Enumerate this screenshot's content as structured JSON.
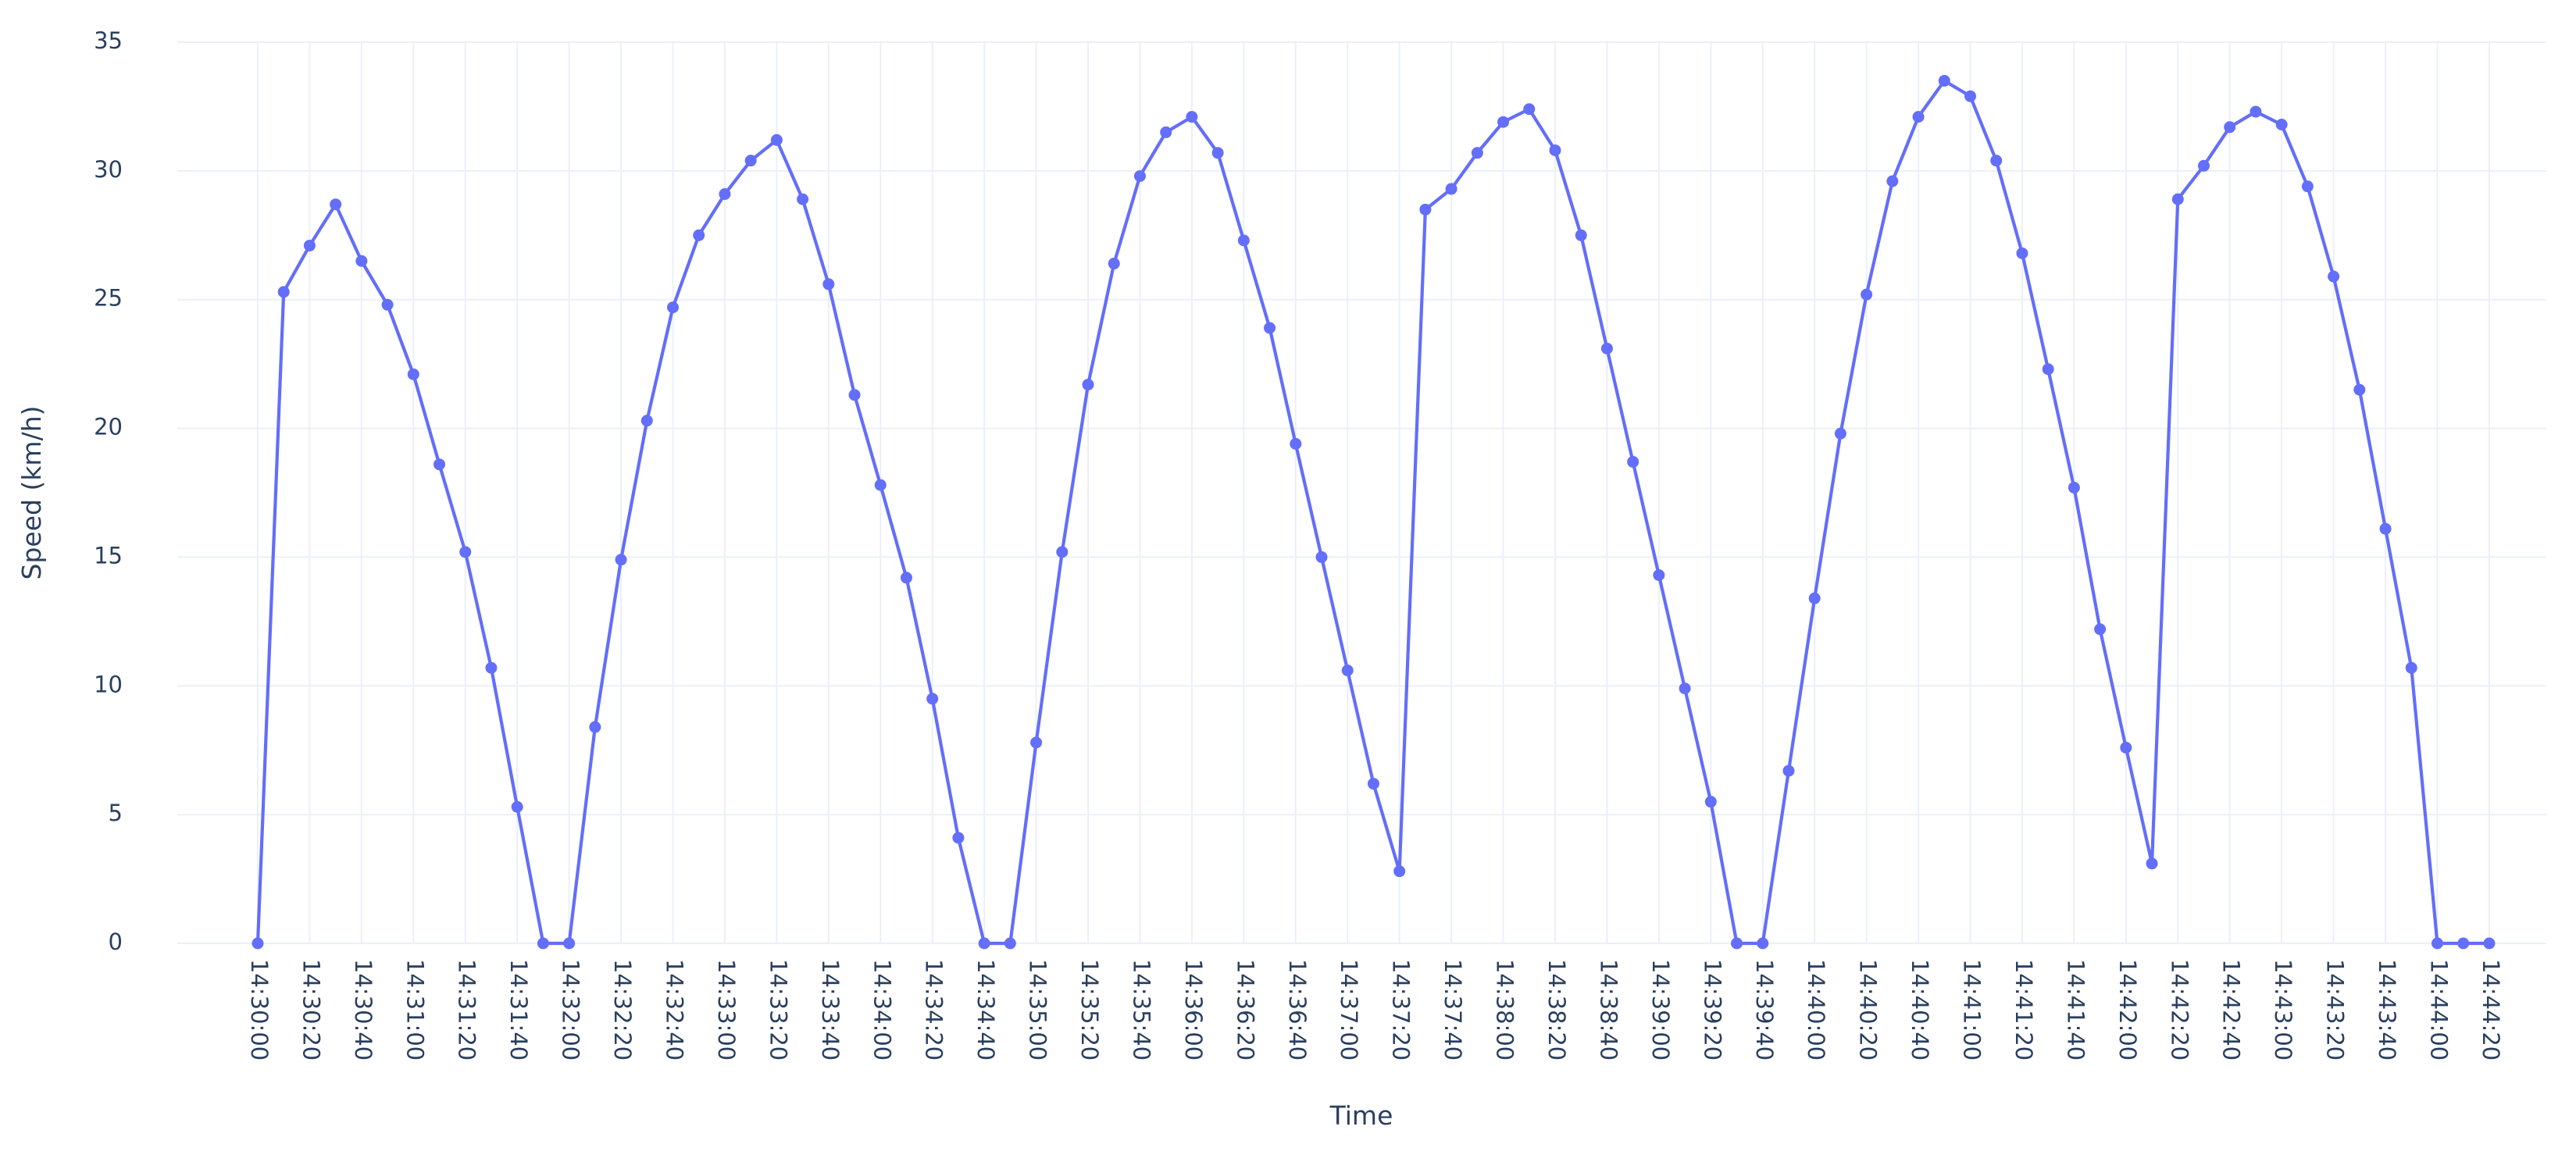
{
  "chart_data": {
    "type": "line",
    "x_label": "Time",
    "y_label": "Speed (km/h)",
    "x": [
      "14:30:00",
      "14:30:10",
      "14:30:20",
      "14:30:30",
      "14:30:40",
      "14:30:50",
      "14:31:00",
      "14:31:10",
      "14:31:20",
      "14:31:30",
      "14:31:40",
      "14:31:50",
      "14:32:00",
      "14:32:10",
      "14:32:20",
      "14:32:30",
      "14:32:40",
      "14:32:50",
      "14:33:00",
      "14:33:10",
      "14:33:20",
      "14:33:30",
      "14:33:40",
      "14:33:50",
      "14:34:00",
      "14:34:10",
      "14:34:20",
      "14:34:30",
      "14:34:40",
      "14:34:50",
      "14:35:00",
      "14:35:10",
      "14:35:20",
      "14:35:30",
      "14:35:40",
      "14:35:50",
      "14:36:00",
      "14:36:10",
      "14:36:20",
      "14:36:30",
      "14:36:40",
      "14:36:50",
      "14:37:00",
      "14:37:10",
      "14:37:20",
      "14:37:30",
      "14:37:40",
      "14:37:50",
      "14:38:00",
      "14:38:10",
      "14:38:20",
      "14:38:30",
      "14:38:40",
      "14:38:50",
      "14:39:00",
      "14:39:10",
      "14:39:20",
      "14:39:30",
      "14:39:40",
      "14:39:50",
      "14:40:00",
      "14:40:10",
      "14:40:20",
      "14:40:30",
      "14:40:40",
      "14:40:50",
      "14:41:00",
      "14:41:10",
      "14:41:20",
      "14:41:30",
      "14:41:40",
      "14:41:50",
      "14:42:00",
      "14:42:10",
      "14:42:20",
      "14:42:30",
      "14:42:40",
      "14:42:50",
      "14:43:00",
      "14:43:10",
      "14:43:20",
      "14:43:30",
      "14:43:40",
      "14:43:50",
      "14:44:00",
      "14:44:10",
      "14:44:20"
    ],
    "series": [
      {
        "color": "#636efa",
        "values": [
          0,
          25.3,
          27.1,
          28.7,
          26.5,
          24.8,
          22.1,
          18.6,
          15.2,
          10.7,
          5.3,
          0,
          0,
          8.4,
          14.9,
          20.3,
          24.7,
          27.5,
          29.1,
          30.4,
          31.2,
          28.9,
          25.6,
          21.3,
          17.8,
          14.2,
          9.5,
          4.1,
          0,
          0,
          7.8,
          15.2,
          21.7,
          26.4,
          29.8,
          31.5,
          32.1,
          30.7,
          27.3,
          23.9,
          19.4,
          15.0,
          10.6,
          6.2,
          2.8,
          28.5,
          29.3,
          30.7,
          31.9,
          32.4,
          30.8,
          27.5,
          23.1,
          18.7,
          14.3,
          9.9,
          5.5,
          0,
          0,
          6.7,
          13.4,
          19.8,
          25.2,
          29.6,
          32.1,
          33.5,
          32.9,
          30.4,
          26.8,
          22.3,
          17.7,
          12.2,
          7.6,
          3.1,
          28.9,
          30.2,
          31.7,
          32.3,
          31.8,
          29.4,
          25.9,
          21.5,
          16.1,
          10.7,
          0,
          0,
          0
        ]
      }
    ],
    "xlim": [
      "14:29:29",
      "14:44:42"
    ],
    "xticks": [
      "14:30:00",
      "14:30:20",
      "14:30:40",
      "14:31:00",
      "14:31:20",
      "14:31:40",
      "14:32:00",
      "14:32:20",
      "14:32:40",
      "14:33:00",
      "14:33:20",
      "14:33:40",
      "14:34:00",
      "14:34:20",
      "14:34:40",
      "14:35:00",
      "14:35:20",
      "14:35:40",
      "14:36:00",
      "14:36:20",
      "14:36:40",
      "14:37:00",
      "14:37:20",
      "14:37:40",
      "14:38:00",
      "14:38:20",
      "14:38:40",
      "14:39:00",
      "14:39:20",
      "14:39:40",
      "14:40:00",
      "14:40:20",
      "14:40:40",
      "14:41:00",
      "14:41:20",
      "14:41:40",
      "14:42:00",
      "14:42:20",
      "14:42:40",
      "14:43:00",
      "14:43:20",
      "14:43:40",
      "14:44:00",
      "14:44:20"
    ],
    "ylim": [
      0,
      35
    ],
    "yticks": [
      0,
      5,
      10,
      15,
      20,
      25,
      30,
      35
    ],
    "grid": true
  }
}
